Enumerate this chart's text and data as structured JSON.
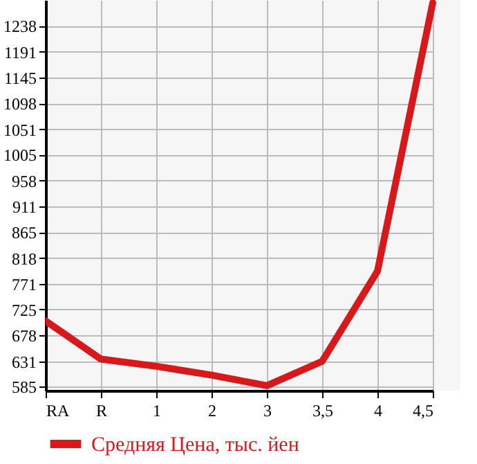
{
  "chart_data": {
    "type": "line",
    "categories": [
      "RA",
      "R",
      "1",
      "2",
      "3",
      "3,5",
      "4",
      "4,5"
    ],
    "series": [
      {
        "name": "Средняя Цена, тыс. йен",
        "color": "#d7191c",
        "values": [
          704,
          635,
          622,
          606,
          587,
          631,
          794,
          1280
        ]
      }
    ],
    "ylim": [
      578,
      1285
    ],
    "yticks": [
      585,
      631,
      678,
      725,
      771,
      818,
      865,
      911,
      958,
      1005,
      1051,
      1098,
      1145,
      1191,
      1238
    ],
    "grid": true,
    "legend": "bottom left",
    "marker": "none",
    "line_style": "solid"
  }
}
